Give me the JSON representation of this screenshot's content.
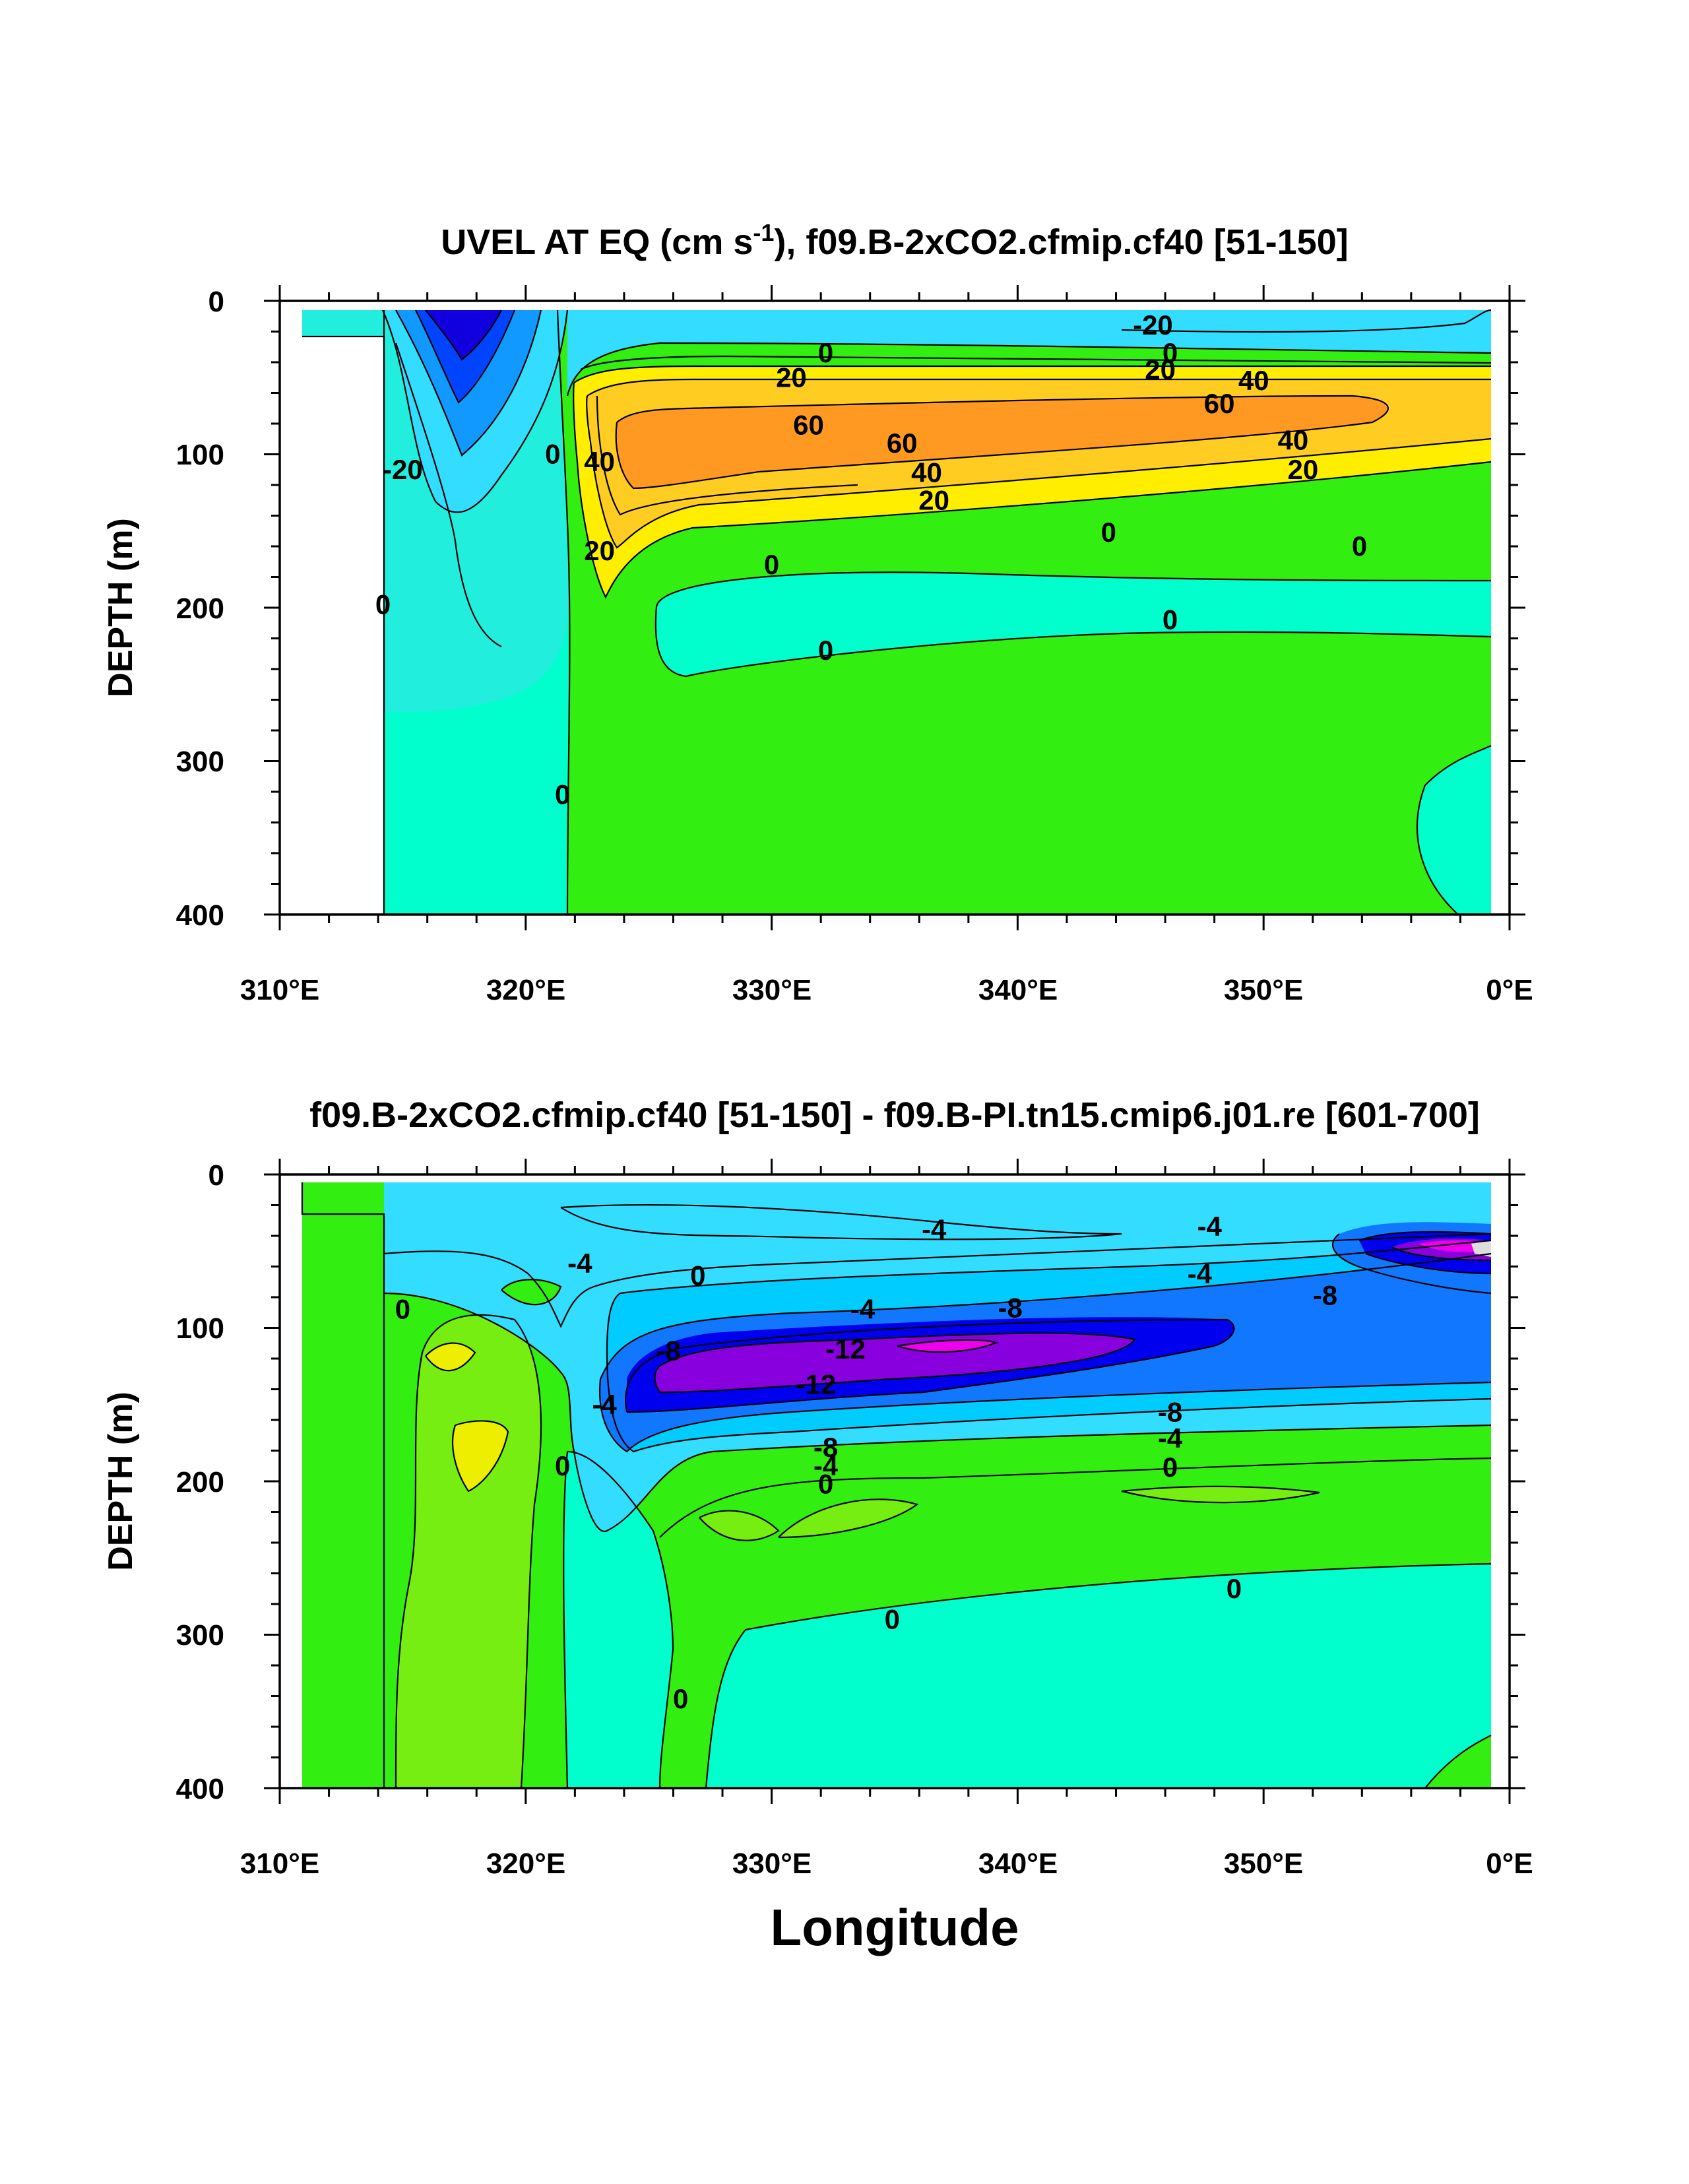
{
  "chart_data": [
    {
      "type": "contour",
      "title_main": "UVEL AT EQ (cm s",
      "title_sup": "-1",
      "title_rest": "), f09.B-2xCO2.cfmip.cf40 [51-150]",
      "ylabel": "DEPTH (m)",
      "xlabel": "",
      "x_ticks": [
        "310°E",
        "320°E",
        "330°E",
        "340°E",
        "350°E",
        "0°E"
      ],
      "y_ticks": [
        "0",
        "100",
        "200",
        "300",
        "400"
      ],
      "xlim": [
        310,
        360
      ],
      "ylim": [
        400,
        0
      ],
      "contour_interval": 10,
      "contour_labels": [
        {
          "text": "-20",
          "lon": 345.5,
          "depth": 16
        },
        {
          "text": "0",
          "lon": 332.2,
          "depth": 34
        },
        {
          "text": "0",
          "lon": 346.2,
          "depth": 34
        },
        {
          "text": "20",
          "lon": 330.8,
          "depth": 50
        },
        {
          "text": "20",
          "lon": 345.8,
          "depth": 45
        },
        {
          "text": "40",
          "lon": 349.6,
          "depth": 52
        },
        {
          "text": "60",
          "lon": 348.2,
          "depth": 67
        },
        {
          "text": "60",
          "lon": 331.5,
          "depth": 81
        },
        {
          "text": "60",
          "lon": 335.3,
          "depth": 93
        },
        {
          "text": "40",
          "lon": 351.2,
          "depth": 91
        },
        {
          "text": "20",
          "lon": 351.6,
          "depth": 110
        },
        {
          "text": "40",
          "lon": 336.3,
          "depth": 112
        },
        {
          "text": "20",
          "lon": 336.6,
          "depth": 130
        },
        {
          "text": "-20",
          "lon": 315.0,
          "depth": 110
        },
        {
          "text": "0",
          "lon": 321.1,
          "depth": 100
        },
        {
          "text": "40",
          "lon": 323.0,
          "depth": 105
        },
        {
          "text": "20",
          "lon": 323.0,
          "depth": 163
        },
        {
          "text": "0",
          "lon": 353.9,
          "depth": 160
        },
        {
          "text": "0",
          "lon": 343.7,
          "depth": 151
        },
        {
          "text": "0",
          "lon": 330.0,
          "depth": 172
        },
        {
          "text": "0",
          "lon": 314.2,
          "depth": 198
        },
        {
          "text": "0",
          "lon": 346.2,
          "depth": 208
        },
        {
          "text": "0",
          "lon": 332.2,
          "depth": 228
        },
        {
          "text": "0",
          "lon": 321.5,
          "depth": 322
        }
      ]
    },
    {
      "type": "contour",
      "title_main": "f09.B-2xCO2.cfmip.cf40 [51-150] - f09.B-PI.tn15.cmip6.j01.re [601-700]",
      "ylabel": "DEPTH (m)",
      "xlabel": "Longitude",
      "x_ticks": [
        "310°E",
        "320°E",
        "330°E",
        "340°E",
        "350°E",
        "0°E"
      ],
      "y_ticks": [
        "0",
        "100",
        "200",
        "300",
        "400"
      ],
      "xlim": [
        310,
        360
      ],
      "ylim": [
        400,
        0
      ],
      "contour_interval": 2,
      "contour_labels": [
        {
          "text": "-4",
          "lon": 336.6,
          "depth": 36
        },
        {
          "text": "-4",
          "lon": 347.8,
          "depth": 34
        },
        {
          "text": "-4",
          "lon": 322.2,
          "depth": 58
        },
        {
          "text": "0",
          "lon": 327.0,
          "depth": 66
        },
        {
          "text": "-4",
          "lon": 347.4,
          "depth": 65
        },
        {
          "text": "-8",
          "lon": 352.5,
          "depth": 79
        },
        {
          "text": "0",
          "lon": 315.0,
          "depth": 88
        },
        {
          "text": "-4",
          "lon": 333.7,
          "depth": 88
        },
        {
          "text": "-8",
          "lon": 339.7,
          "depth": 87
        },
        {
          "text": "-12",
          "lon": 333.0,
          "depth": 114
        },
        {
          "text": "-8",
          "lon": 325.8,
          "depth": 115
        },
        {
          "text": "-12",
          "lon": 331.8,
          "depth": 137
        },
        {
          "text": "-4",
          "lon": 323.2,
          "depth": 150
        },
        {
          "text": "-8",
          "lon": 346.2,
          "depth": 155
        },
        {
          "text": "-4",
          "lon": 346.2,
          "depth": 172
        },
        {
          "text": "-8",
          "lon": 332.2,
          "depth": 178
        },
        {
          "text": "-4",
          "lon": 332.2,
          "depth": 190
        },
        {
          "text": "0",
          "lon": 346.2,
          "depth": 191
        },
        {
          "text": "0",
          "lon": 321.5,
          "depth": 190
        },
        {
          "text": "0",
          "lon": 332.2,
          "depth": 202
        },
        {
          "text": "0",
          "lon": 348.8,
          "depth": 270
        },
        {
          "text": "0",
          "lon": 334.9,
          "depth": 290
        },
        {
          "text": "0",
          "lon": 326.3,
          "depth": 342
        }
      ]
    }
  ]
}
